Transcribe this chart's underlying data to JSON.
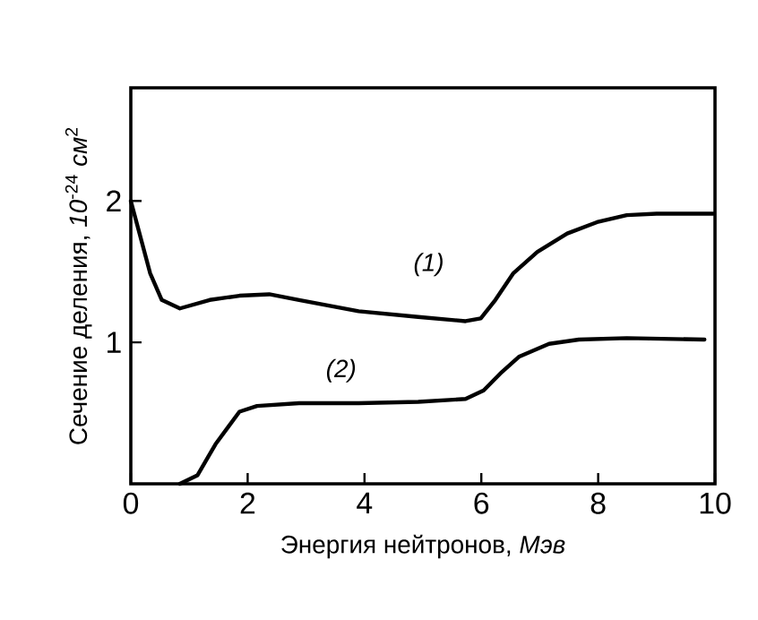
{
  "chart_data": {
    "type": "line",
    "xlabel": "Энергия нейтронов, *Мэв*",
    "ylabel": "Сечение деления, *10*$^{-24}$ *см*$^{2}$",
    "xlim": [
      0,
      10
    ],
    "ylim": [
      0,
      2.8
    ],
    "xticks": [
      0,
      2,
      4,
      6,
      8,
      10
    ],
    "yticks": [
      1,
      2
    ],
    "grid": false,
    "legend": false,
    "marker": "none",
    "line_style": "solid",
    "series": [
      {
        "name": "(1)",
        "color": "#000000",
        "x": [
          0,
          0.33,
          0.53,
          0.84,
          1.35,
          1.86,
          2.37,
          2.88,
          3.39,
          3.9,
          4.92,
          5.73,
          5.99,
          6.24,
          6.55,
          6.96,
          7.47,
          7.98,
          8.49,
          9.0,
          9.97
        ],
        "values": [
          2.0,
          1.49,
          1.3,
          1.24,
          1.3,
          1.33,
          1.34,
          1.3,
          1.26,
          1.22,
          1.18,
          1.15,
          1.17,
          1.3,
          1.49,
          1.64,
          1.77,
          1.85,
          1.9,
          1.91,
          1.91
        ]
      },
      {
        "name": "(2)",
        "color": "#000000",
        "x": [
          0.84,
          1.14,
          1.45,
          1.86,
          2.16,
          2.88,
          3.9,
          4.92,
          5.73,
          6.04,
          6.35,
          6.65,
          7.16,
          7.67,
          8.49,
          9.82
        ],
        "values": [
          0,
          0.06,
          0.28,
          0.51,
          0.55,
          0.57,
          0.57,
          0.58,
          0.6,
          0.66,
          0.79,
          0.9,
          0.99,
          1.02,
          1.03,
          1.02
        ]
      }
    ]
  }
}
